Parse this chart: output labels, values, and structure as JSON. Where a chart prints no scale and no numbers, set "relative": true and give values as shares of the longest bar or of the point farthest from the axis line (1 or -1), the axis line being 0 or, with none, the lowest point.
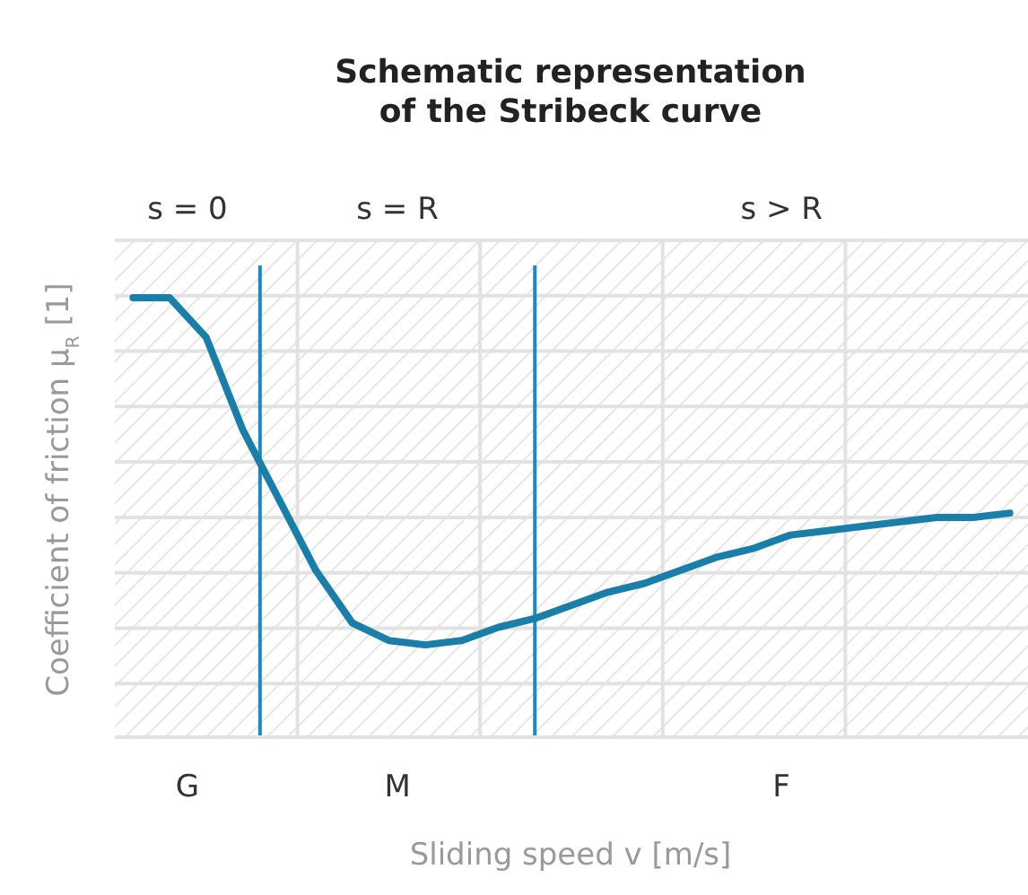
{
  "chart_data": {
    "type": "line",
    "title": "Schematic representation\nof the Stribeck curve",
    "xlabel": "Sliding speed v [m/s]",
    "ylabel": "Coefficient of friction μ$_{R}$ [1]",
    "relative": true,
    "categories": [
      null,
      null,
      null,
      null,
      null,
      null,
      null,
      null,
      null,
      null,
      null,
      null,
      null,
      null,
      null,
      null,
      null,
      null,
      null,
      null,
      null,
      null,
      null,
      null,
      null
    ],
    "grid": true,
    "marker": "none",
    "line_style": "solid",
    "series": [
      {
        "color": "#1a7fa8",
        "values": [
          1.0,
          1.0,
          0.91,
          0.7,
          0.54,
          0.38,
          0.26,
          0.22,
          0.21,
          0.22,
          0.25,
          0.27,
          0.3,
          0.33,
          0.35,
          0.38,
          0.41,
          0.43,
          0.46,
          0.47,
          0.48,
          0.49,
          0.5,
          0.5,
          0.51
        ]
      }
    ],
    "annotations": [
      "s = 0",
      "s = R",
      "s > R",
      "G",
      "M",
      "F"
    ]
  }
}
